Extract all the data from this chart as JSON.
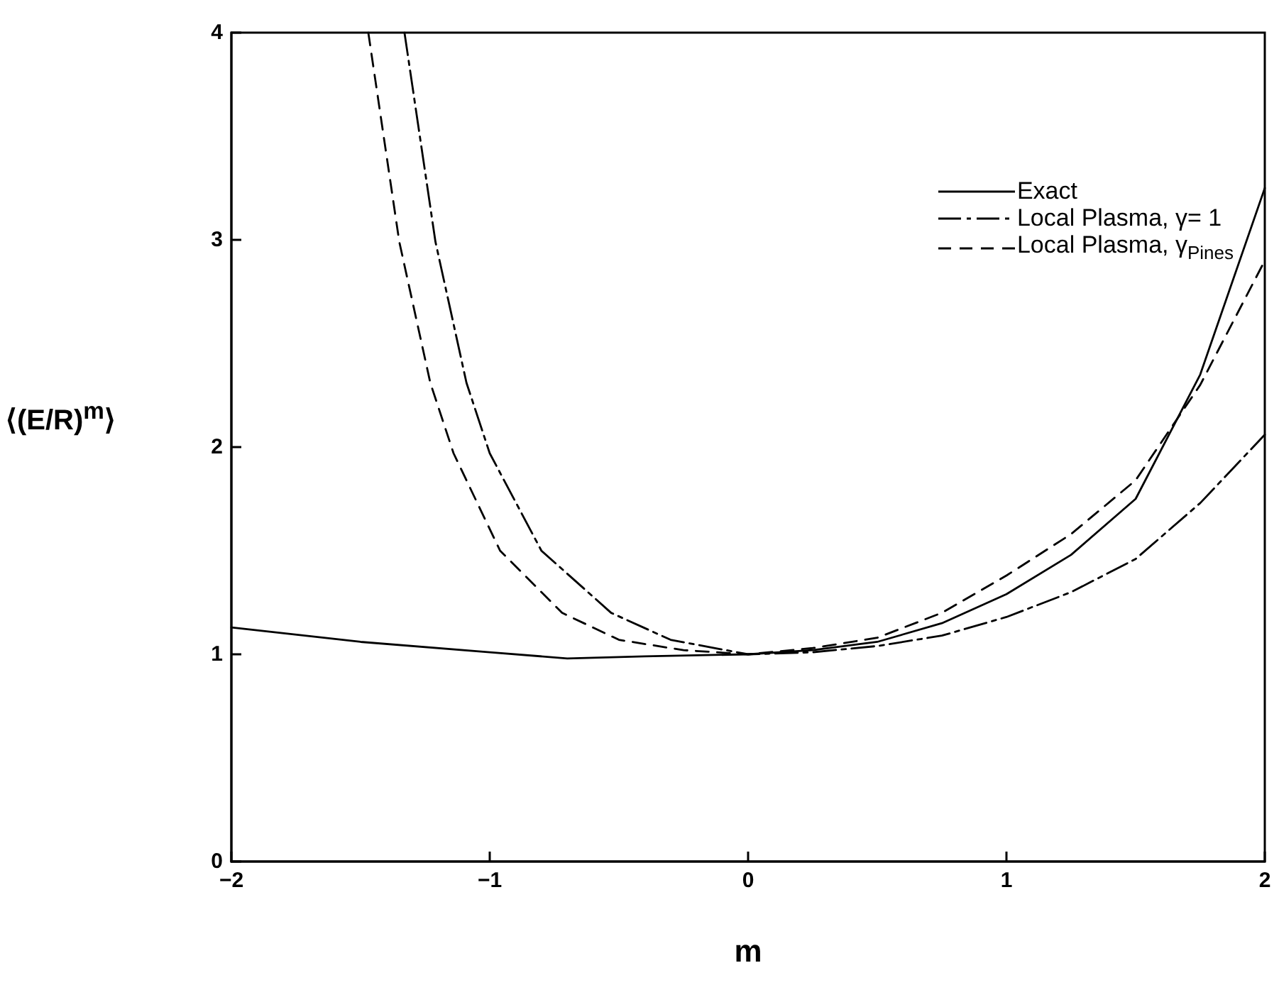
{
  "chart_data": {
    "type": "line",
    "xlabel": "m",
    "ylabel": "⟨(E/R)$^{m}$⟩",
    "xlim": [
      -2,
      2
    ],
    "xticks": [
      -2,
      -1,
      0,
      1,
      2
    ],
    "ylim": [
      0,
      4
    ],
    "yticks": [
      0,
      1,
      2,
      3,
      4
    ],
    "grid": false,
    "legend": "top right",
    "marker": "none",
    "series": [
      {
        "name": "Exact",
        "color": "#000000",
        "line_style": "solid",
        "x": [
          -2,
          -1.5,
          -1,
          -0.7,
          -0.4,
          0,
          0.25,
          0.5,
          0.75,
          1,
          1.25,
          1.5,
          1.75,
          2
        ],
        "values": [
          1.13,
          1.06,
          1.01,
          0.98,
          0.99,
          1.0,
          1.02,
          1.06,
          1.15,
          1.29,
          1.48,
          1.75,
          2.35,
          3.25
        ]
      },
      {
        "name": "Local Plasma, γ= 1",
        "color": "#000000",
        "line_style": "dashdot",
        "x": [
          -1.33,
          -1.21,
          -1.09,
          -1.0,
          -0.8,
          -0.53,
          -0.3,
          0,
          0.25,
          0.5,
          0.75,
          1,
          1.25,
          1.5,
          1.75,
          2
        ],
        "values": [
          4,
          2.99,
          2.31,
          1.97,
          1.5,
          1.2,
          1.07,
          1.0,
          1.01,
          1.04,
          1.09,
          1.18,
          1.3,
          1.46,
          1.73,
          2.06
        ]
      },
      {
        "name": "Local Plasma, γ$_{Pines}$",
        "color": "#000000",
        "line_style": "dashed",
        "x": [
          -1.47,
          -1.35,
          -1.23,
          -1.14,
          -0.96,
          -0.72,
          -0.5,
          -0.25,
          0,
          0.25,
          0.5,
          0.75,
          1,
          1.25,
          1.5,
          1.75,
          2
        ],
        "values": [
          4,
          2.99,
          2.31,
          1.97,
          1.5,
          1.2,
          1.07,
          1.02,
          1.0,
          1.03,
          1.08,
          1.2,
          1.38,
          1.58,
          1.84,
          2.3,
          2.9
        ]
      }
    ]
  }
}
